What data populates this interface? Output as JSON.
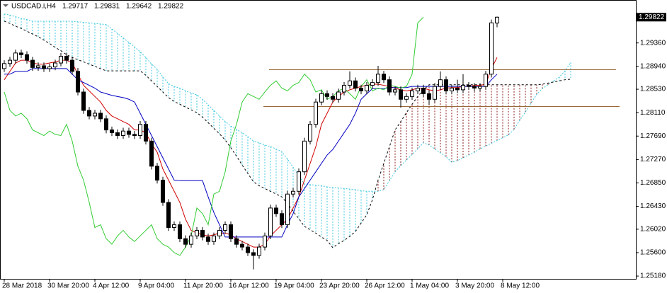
{
  "chart_data": {
    "type": "candlestick",
    "symbol": "USDCAD.i,H4",
    "open": [
      1.289,
      1.2899,
      1.2905,
      1.2918,
      1.2915,
      1.2905,
      1.2892,
      1.2895,
      1.289,
      1.2893,
      1.29,
      1.2912,
      1.2905,
      1.2885,
      1.2848,
      1.2815,
      1.2805,
      1.281,
      1.28,
      1.278,
      1.2775,
      1.277,
      1.2778,
      1.2772,
      1.277,
      1.279,
      1.276,
      1.2715,
      1.269,
      1.265,
      1.2605,
      1.261,
      1.2585,
      1.2575,
      1.259,
      1.26,
      1.2588,
      1.258,
      1.259,
      1.26,
      1.261,
      1.2585,
      1.2575,
      1.257,
      1.256,
      1.2555,
      1.257,
      1.259,
      1.264,
      1.263,
      1.261,
      1.2665,
      1.267,
      1.2705,
      1.276,
      1.279,
      1.283,
      1.2845,
      1.284,
      1.2835,
      1.2848,
      1.286,
      1.2868,
      1.2855,
      1.285,
      1.286,
      1.2865,
      1.288,
      1.287,
      1.2848,
      1.2852,
      1.2835,
      1.284,
      1.285,
      1.2855,
      1.2845,
      1.2835,
      1.2858,
      1.287,
      1.285,
      1.2855,
      1.2852,
      1.286,
      1.2858,
      1.2855,
      1.2858,
      1.288,
      1.29717
    ],
    "high": [
      1.2905,
      1.2911,
      1.2924,
      1.2924,
      1.2921,
      1.2911,
      1.2901,
      1.2901,
      1.2899,
      1.2906,
      1.2918,
      1.2918,
      1.2911,
      1.2891,
      1.2854,
      1.2821,
      1.2816,
      1.2816,
      1.2806,
      1.2786,
      1.2781,
      1.2784,
      1.2784,
      1.2778,
      1.2796,
      1.2796,
      1.2766,
      1.2721,
      1.2696,
      1.2656,
      1.2616,
      1.2616,
      1.2591,
      1.2596,
      1.2606,
      1.2606,
      1.2594,
      1.2596,
      1.2606,
      1.2616,
      1.2616,
      1.2591,
      1.2581,
      1.2576,
      1.2566,
      1.2576,
      1.2596,
      1.2646,
      1.2646,
      1.2636,
      1.2671,
      1.2676,
      1.2711,
      1.2766,
      1.2796,
      1.2836,
      1.2851,
      1.2851,
      1.2846,
      1.2854,
      1.2866,
      1.2885,
      1.2874,
      1.2861,
      1.2866,
      1.2871,
      1.2895,
      1.2886,
      1.2876,
      1.2858,
      1.2858,
      1.2846,
      1.2856,
      1.2861,
      1.2861,
      1.2851,
      1.2864,
      1.2885,
      1.2876,
      1.2861,
      1.287,
      1.288,
      1.2866,
      1.2864,
      1.2864,
      1.2886,
      1.2978,
      1.29831
    ],
    "low": [
      1.2884,
      1.2893,
      1.2899,
      1.2909,
      1.2899,
      1.2886,
      1.2886,
      1.2884,
      1.2884,
      1.2887,
      1.2894,
      1.2899,
      1.2879,
      1.2842,
      1.2809,
      1.2799,
      1.2799,
      1.2794,
      1.2774,
      1.2769,
      1.2764,
      1.2764,
      1.2766,
      1.2764,
      1.2764,
      1.2754,
      1.2709,
      1.2684,
      1.2644,
      1.2599,
      1.2599,
      1.2579,
      1.2569,
      1.2569,
      1.2584,
      1.2582,
      1.2574,
      1.2574,
      1.2584,
      1.2594,
      1.2579,
      1.2569,
      1.2564,
      1.2554,
      1.253,
      1.2549,
      1.2564,
      1.2584,
      1.2624,
      1.2604,
      1.2604,
      1.2659,
      1.2664,
      1.2699,
      1.2754,
      1.2784,
      1.2824,
      1.2834,
      1.2829,
      1.2829,
      1.2842,
      1.2854,
      1.2849,
      1.2844,
      1.2844,
      1.2854,
      1.2859,
      1.2864,
      1.2842,
      1.2842,
      1.282,
      1.2829,
      1.2834,
      1.2844,
      1.2839,
      1.2825,
      1.2829,
      1.2852,
      1.2844,
      1.2844,
      1.2846,
      1.2846,
      1.2852,
      1.2849,
      1.2849,
      1.2852,
      1.2874,
      1.29642
    ],
    "close": [
      1.2899,
      1.2905,
      1.2918,
      1.2915,
      1.2905,
      1.2892,
      1.2895,
      1.289,
      1.2893,
      1.29,
      1.2912,
      1.2905,
      1.2885,
      1.2848,
      1.2815,
      1.2805,
      1.281,
      1.28,
      1.278,
      1.2775,
      1.277,
      1.2778,
      1.2772,
      1.277,
      1.279,
      1.276,
      1.2715,
      1.269,
      1.265,
      1.2605,
      1.261,
      1.2585,
      1.2575,
      1.259,
      1.26,
      1.2588,
      1.258,
      1.259,
      1.26,
      1.261,
      1.2585,
      1.2575,
      1.257,
      1.256,
      1.2555,
      1.257,
      1.259,
      1.264,
      1.263,
      1.261,
      1.2665,
      1.267,
      1.2705,
      1.276,
      1.279,
      1.283,
      1.2845,
      1.284,
      1.2835,
      1.2848,
      1.286,
      1.2868,
      1.2855,
      1.285,
      1.286,
      1.2865,
      1.288,
      1.287,
      1.2848,
      1.2852,
      1.2835,
      1.284,
      1.285,
      1.2855,
      1.2845,
      1.2835,
      1.2858,
      1.287,
      1.285,
      1.2855,
      1.2852,
      1.286,
      1.2858,
      1.2855,
      1.2858,
      1.288,
      1.2972,
      1.29822
    ],
    "lines": [
      {
        "color": "#d00000",
        "values": [
          1.287,
          1.2885,
          1.29,
          1.2905,
          1.2905,
          1.29,
          1.2898,
          1.2898,
          1.29,
          1.2902,
          1.2905,
          1.2905,
          1.29,
          1.288,
          1.286,
          1.285,
          1.284,
          1.283,
          1.2815,
          1.2805,
          1.28,
          1.2795,
          1.279,
          1.278,
          1.278,
          1.2775,
          1.2755,
          1.274,
          1.271,
          1.269,
          1.267,
          1.265,
          1.262,
          1.26,
          1.2595,
          1.2592,
          1.259,
          1.2592,
          1.2595,
          1.2595,
          1.2592,
          1.2585,
          1.258,
          1.2575,
          1.257,
          1.257,
          1.2575,
          1.259,
          1.26,
          1.261,
          1.262,
          1.264,
          1.266,
          1.269,
          1.272,
          1.275,
          1.279,
          1.281,
          1.283,
          1.284,
          1.2848,
          1.2852,
          1.2855,
          1.2858,
          1.286,
          1.2862,
          1.2862,
          1.286,
          1.2858,
          1.2855,
          1.2852,
          1.285,
          1.2852,
          1.2855,
          1.2855,
          1.2852,
          1.285,
          1.2852,
          1.2855,
          1.2856,
          1.2856,
          1.2858,
          1.2858,
          1.286,
          1.286,
          1.2862,
          1.289,
          1.291
        ]
      },
      {
        "color": "#0000c0",
        "values": [
          1.288,
          1.288,
          1.2885,
          1.2885,
          1.2885,
          1.289,
          1.289,
          1.289,
          1.289,
          1.289,
          1.289,
          1.289,
          1.288,
          1.287,
          1.2865,
          1.286,
          1.2855,
          1.2848,
          1.2845,
          1.2842,
          1.284,
          1.2838,
          1.2835,
          1.283,
          1.281,
          1.279,
          1.277,
          1.275,
          1.273,
          1.271,
          1.269,
          1.2689,
          1.2689,
          1.2689,
          1.2689,
          1.2689,
          1.266,
          1.2632,
          1.261,
          1.2588,
          1.2588,
          1.2588,
          1.2588,
          1.2588,
          1.2588,
          1.2588,
          1.2588,
          1.2588,
          1.2588,
          1.2588,
          1.261,
          1.263,
          1.266,
          1.2675,
          1.269,
          1.2705,
          1.272,
          1.2735,
          1.2745,
          1.276,
          1.2775,
          1.279,
          1.281,
          1.2835,
          1.2845,
          1.2854,
          1.2854,
          1.2854,
          1.2856,
          1.2856,
          1.2856,
          1.2856,
          1.2858,
          1.2858,
          1.2858,
          1.2858,
          1.2858,
          1.2858,
          1.2858,
          1.2858,
          1.2858,
          1.2858,
          1.2858,
          1.2858,
          1.2858,
          1.2858,
          1.287,
          1.288
        ]
      },
      {
        "color": "#33cc33",
        "values": [
          1.2848,
          1.2815,
          1.2805,
          1.281,
          1.28,
          1.278,
          1.2775,
          1.277,
          1.2778,
          1.2772,
          1.277,
          1.279,
          1.276,
          1.2715,
          1.269,
          1.265,
          1.2605,
          1.261,
          1.2585,
          1.2575,
          1.259,
          1.26,
          1.2588,
          1.258,
          1.259,
          1.26,
          1.261,
          1.2585,
          1.2575,
          1.257,
          1.256,
          1.2555,
          1.257,
          1.259,
          1.264,
          1.263,
          1.261,
          1.2665,
          1.267,
          1.2705,
          1.276,
          1.279,
          1.283,
          1.2845,
          1.284,
          1.2835,
          1.2848,
          1.286,
          1.2868,
          1.2855,
          1.285,
          1.286,
          1.2865,
          1.288,
          1.287,
          1.2848,
          1.2852,
          1.2835,
          1.284,
          1.285,
          1.2855,
          1.2845,
          1.2835,
          1.2858,
          1.287,
          1.285,
          1.2855,
          1.2852,
          1.286,
          1.2858,
          1.2855,
          1.2858,
          1.288,
          1.2972,
          1.29822,
          null,
          null,
          null,
          null,
          null,
          null,
          null,
          null,
          null,
          null,
          null,
          null,
          null
        ]
      }
    ],
    "cloud": {
      "up_color": "#3fc8e0",
      "down_color": "#8b1a1a",
      "span_a": [
        1.2988,
        1.2986,
        1.2983,
        1.298,
        1.2978,
        1.2975,
        1.2975,
        1.2975,
        1.2975,
        1.2975,
        1.2975,
        1.2975,
        1.2975,
        1.2974,
        1.2973,
        1.2972,
        1.2971,
        1.297,
        1.2969,
        1.2961,
        1.2953,
        1.2945,
        1.2937,
        1.2929,
        1.292,
        1.291,
        1.2898,
        1.2889,
        1.2875,
        1.2863,
        1.2858,
        1.2855,
        1.285,
        1.2846,
        1.2843,
        1.2835,
        1.2825,
        1.2815,
        1.2805,
        1.2795,
        1.2787,
        1.2781,
        1.2775,
        1.2768,
        1.276,
        1.2757,
        1.2753,
        1.275,
        1.2746,
        1.2741,
        1.2728,
        1.2713,
        1.2698,
        1.2683,
        1.2682,
        1.2681,
        1.268,
        1.2678,
        1.2677,
        1.2676,
        1.2675,
        1.2674,
        1.2673,
        1.2671,
        1.267,
        1.267,
        1.267,
        1.2673,
        1.2689,
        1.2705,
        1.2716,
        1.2726,
        1.2736,
        1.2746,
        1.2757,
        1.2753,
        1.2746,
        1.2739,
        1.2732,
        1.2722,
        1.2725,
        1.273,
        1.2735,
        1.274,
        1.2746,
        1.2751,
        1.2756,
        1.2761,
        1.2766,
        1.2771,
        1.2781,
        1.2797,
        1.2812,
        1.2828,
        1.2844,
        1.2854,
        1.2861,
        1.2868,
        1.2875,
        1.2886,
        1.2901
      ],
      "span_b": [
        1.2975,
        1.2971,
        1.2966,
        1.2962,
        1.2957,
        1.2952,
        1.2947,
        1.2941,
        1.2935,
        1.2928,
        1.2922,
        1.2915,
        1.291,
        1.2906,
        1.2902,
        1.2898,
        1.2894,
        1.289,
        1.2886,
        1.2886,
        1.2886,
        1.2886,
        1.2886,
        1.2886,
        1.2886,
        1.2878,
        1.2868,
        1.2858,
        1.2848,
        1.2838,
        1.2831,
        1.2826,
        1.2821,
        1.2816,
        1.2811,
        1.2803,
        1.2793,
        1.2783,
        1.2773,
        1.2762,
        1.2748,
        1.2733,
        1.2717,
        1.2702,
        1.2687,
        1.268,
        1.2675,
        1.267,
        1.2665,
        1.266,
        1.2648,
        1.2634,
        1.2621,
        1.2607,
        1.2601,
        1.2595,
        1.2588,
        1.2582,
        1.2569,
        1.2576,
        1.2582,
        1.2589,
        1.2598,
        1.2613,
        1.2628,
        1.2655,
        1.269,
        1.272,
        1.275,
        1.278,
        1.2795,
        1.2811,
        1.2826,
        1.284,
        1.2852,
        1.2861,
        1.2861,
        1.2861,
        1.2861,
        1.2861,
        1.2861,
        1.2861,
        1.2861,
        1.2861,
        1.2861,
        1.2861,
        1.2861,
        1.2861,
        1.2861,
        1.2861,
        1.2861,
        1.2861,
        1.2861,
        1.2861,
        1.2861,
        1.2862,
        1.2864,
        1.2866,
        1.2868,
        1.287,
        1.2871
      ]
    },
    "hlines": {
      "color": "#9a6a3a",
      "values": [
        1.2888,
        1.2822
      ]
    },
    "ylim": [
      1.2513,
      1.3013
    ],
    "yticks": [
      {
        "value": 1.2936,
        "label": "1.29360"
      },
      {
        "value": 1.2894,
        "label": "1.28940"
      },
      {
        "value": 1.2853,
        "label": "1.28530"
      },
      {
        "value": 1.2811,
        "label": "1.28110"
      },
      {
        "value": 1.2769,
        "label": "1.27690"
      },
      {
        "value": 1.2727,
        "label": "1.27270"
      },
      {
        "value": 1.2685,
        "label": "1.26850"
      },
      {
        "value": 1.2643,
        "label": "1.26430"
      },
      {
        "value": 1.2602,
        "label": "1.26020"
      },
      {
        "value": 1.256,
        "label": "1.25600"
      },
      {
        "value": 1.2518,
        "label": "1.25180"
      }
    ],
    "xticks": [
      {
        "value": 0,
        "label": "28 Mar 2018"
      },
      {
        "value": 8,
        "label": "30 Mar 20:00"
      },
      {
        "value": 16,
        "label": "4 Apr 12:00"
      },
      {
        "value": 24,
        "label": "9 Apr 04:00"
      },
      {
        "value": 32,
        "label": "11 Apr 20:00"
      },
      {
        "value": 40,
        "label": "16 Apr 12:00"
      },
      {
        "value": 48,
        "label": "19 Apr 04:00"
      },
      {
        "value": 56,
        "label": "23 Apr 20:00"
      },
      {
        "value": 64,
        "label": "26 Apr 12:00"
      },
      {
        "value": 72,
        "label": "1 May 04:00"
      },
      {
        "value": 80,
        "label": "3 May 20:00"
      },
      {
        "value": 88,
        "label": "8 May 12:00"
      }
    ]
  }
}
